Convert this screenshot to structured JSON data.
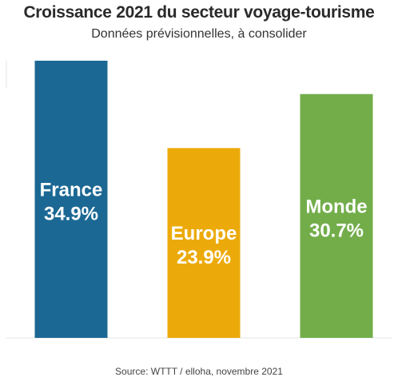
{
  "chart_data": {
    "type": "bar",
    "title": "Croissance 2021 du secteur voyage-tourisme",
    "subtitle": "Données prévisionnelles, à consolider",
    "categories": [
      "France",
      "Europe",
      "Monde"
    ],
    "values": [
      34.9,
      23.9,
      30.7
    ],
    "value_labels": [
      "34.9%",
      "23.9%",
      "30.7%"
    ],
    "colors": [
      "#1c6894",
      "#ecaa0a",
      "#72ad4a"
    ],
    "ylim": [
      0,
      35
    ],
    "grid": false,
    "legend": "none",
    "source": "Source: WTTT / elloha, novembre 2021"
  }
}
